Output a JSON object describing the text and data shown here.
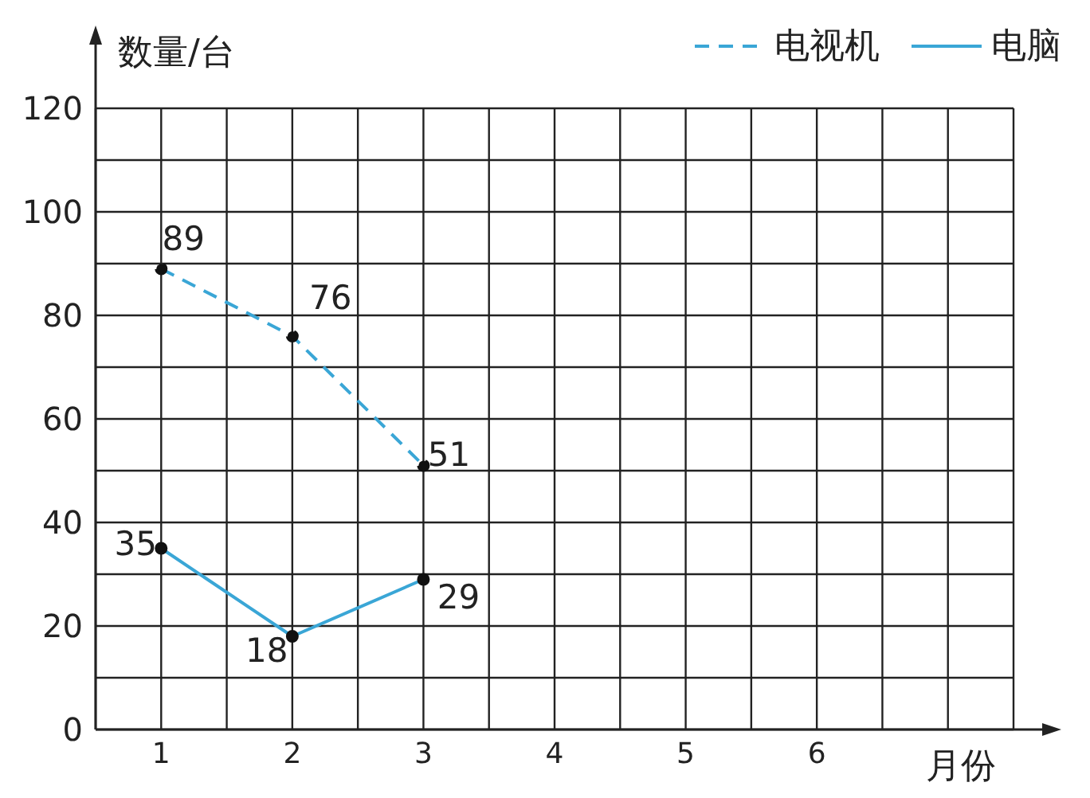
{
  "chart_data": {
    "type": "line",
    "xlabel": "月份",
    "ylabel": "数量/台",
    "x": [
      1,
      2,
      3
    ],
    "series": [
      {
        "name": "电视机",
        "color": "#3aa6d6",
        "values": [
          89,
          76,
          51
        ],
        "line_style": "dashed"
      },
      {
        "name": "电脑",
        "color": "#3aa6d6",
        "values": [
          35,
          18,
          29
        ],
        "line_style": "solid"
      }
    ],
    "xlim": [
      0.5,
      7.5
    ],
    "xticks": [
      {
        "value": 0.5,
        "label": null
      },
      1,
      {
        "value": 1.5,
        "label": null
      },
      2,
      {
        "value": 2.5,
        "label": null
      },
      3,
      {
        "value": 3.5,
        "label": null
      },
      4,
      {
        "value": 4.5,
        "label": null
      },
      5,
      {
        "value": 5.5,
        "label": null
      },
      6,
      {
        "value": 6.5,
        "label": null
      },
      {
        "value": 7,
        "label": null
      },
      {
        "value": 7.5,
        "label": null
      }
    ],
    "ylim": [
      0,
      120
    ],
    "yticks": [
      0,
      {
        "value": 10,
        "label": null
      },
      20,
      {
        "value": 30,
        "label": null
      },
      40,
      {
        "value": 50,
        "label": null
      },
      60,
      {
        "value": 70,
        "label": null
      },
      80,
      {
        "value": 90,
        "label": null
      },
      100,
      {
        "value": 110,
        "label": null
      },
      120
    ],
    "grid": true,
    "legend": "top right",
    "marker": "circle",
    "data_labels": true
  }
}
